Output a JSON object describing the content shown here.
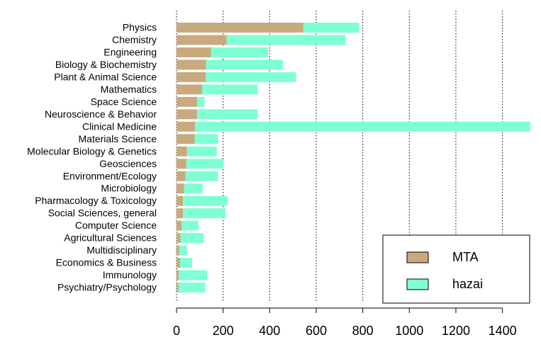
{
  "chart_data": {
    "type": "bar",
    "orientation": "horizontal",
    "stacked": true,
    "categories": [
      "Physics",
      "Chemistry",
      "Engineering",
      "Biology & Biochemistry",
      "Plant & Animal Science",
      "Mathematics",
      "Space Science",
      "Neuroscience & Behavior",
      "Clinical Medicine",
      "Materials Science",
      "Molecular Biology & Genetics",
      "Geosciences",
      "Environment/Ecology",
      "Microbiology",
      "Pharmacology & Toxicology",
      "Social Sciences, general",
      "Computer Science",
      "Agricultural Sciences",
      "Multidisciplinary",
      "Economics & Business",
      "Immunology",
      "Psychiatry/Psychology"
    ],
    "series": [
      {
        "name": "MTA",
        "color": "#c9a97e",
        "values": [
          545,
          215,
          148,
          127,
          125,
          110,
          88,
          88,
          80,
          78,
          45,
          42,
          38,
          32,
          28,
          28,
          22,
          17,
          12,
          15,
          10,
          8
        ]
      },
      {
        "name": "hazai",
        "color": "#7fffd4",
        "values": [
          240,
          510,
          245,
          330,
          388,
          238,
          32,
          260,
          1440,
          100,
          128,
          160,
          140,
          80,
          192,
          182,
          72,
          100,
          32,
          52,
          122,
          115
        ]
      }
    ],
    "xlim": [
      0,
      1520
    ],
    "xticks": [
      0,
      200,
      400,
      600,
      800,
      1000,
      1200,
      1400
    ],
    "title": "",
    "xlabel": "",
    "ylabel": "",
    "grid": "vertical dotted at x ticks",
    "legend_position": "bottom-right"
  }
}
